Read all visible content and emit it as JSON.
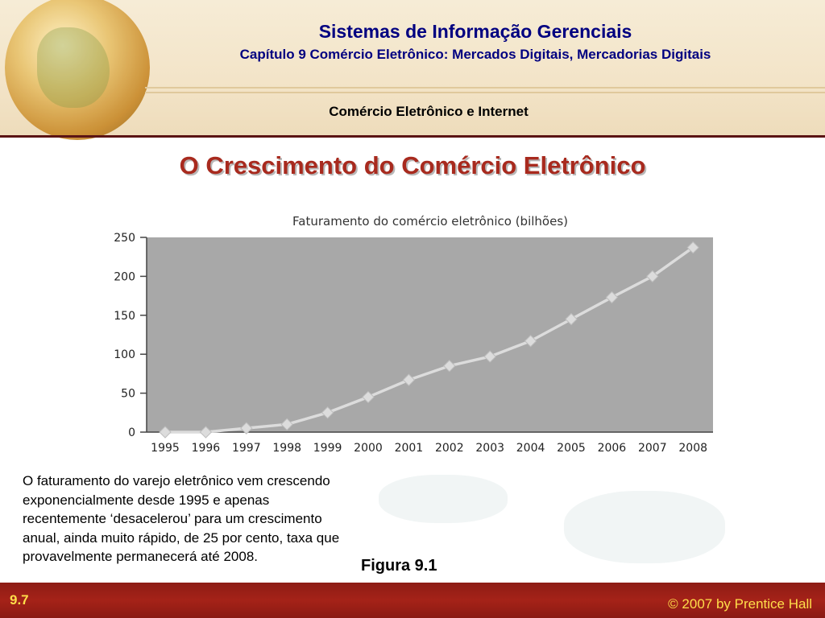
{
  "header": {
    "title": "Sistemas de Informação Gerenciais",
    "subtitle": "Capítulo  9 Comércio Eletrônico: Mercados Digitais, Mercadorias Digitais",
    "section": "Comércio Eletrônico e Internet"
  },
  "slide": {
    "title": "O Crescimento do Comércio Eletrônico",
    "caption": "O faturamento do varejo eletrônico vem crescendo exponencialmente desde 1995 e apenas recentemente ‘desacelerou’ para um crescimento anual, ainda muito rápido, de 25 por cento, taxa que provavelmente permanecerá até 2008.",
    "figure_label": "Figura 9.1"
  },
  "footer": {
    "page": "9.7",
    "copyright": "© 2007 by Prentice Hall"
  },
  "colors": {
    "title_blue": "#000080",
    "slide_title_red": "#a82a1e",
    "footer_red": "#9b1f16",
    "footer_text": "#ffde4a",
    "plot_bg": "#a8a8a8",
    "line": "#dcdcdc"
  },
  "chart_data": {
    "type": "line",
    "title": "Faturamento do comércio eletrônico (bilhões)",
    "xlabel": "",
    "ylabel": "",
    "categories": [
      "1995",
      "1996",
      "1997",
      "1998",
      "1999",
      "2000",
      "2001",
      "2002",
      "2003",
      "2004",
      "2005",
      "2006",
      "2007",
      "2008"
    ],
    "values": [
      0,
      0,
      5,
      10,
      25,
      45,
      67,
      85,
      97,
      117,
      145,
      173,
      200,
      237
    ],
    "ylim": [
      0,
      250
    ],
    "yticks": [
      0,
      50,
      100,
      150,
      200,
      250
    ],
    "grid": false,
    "legend": "none"
  }
}
